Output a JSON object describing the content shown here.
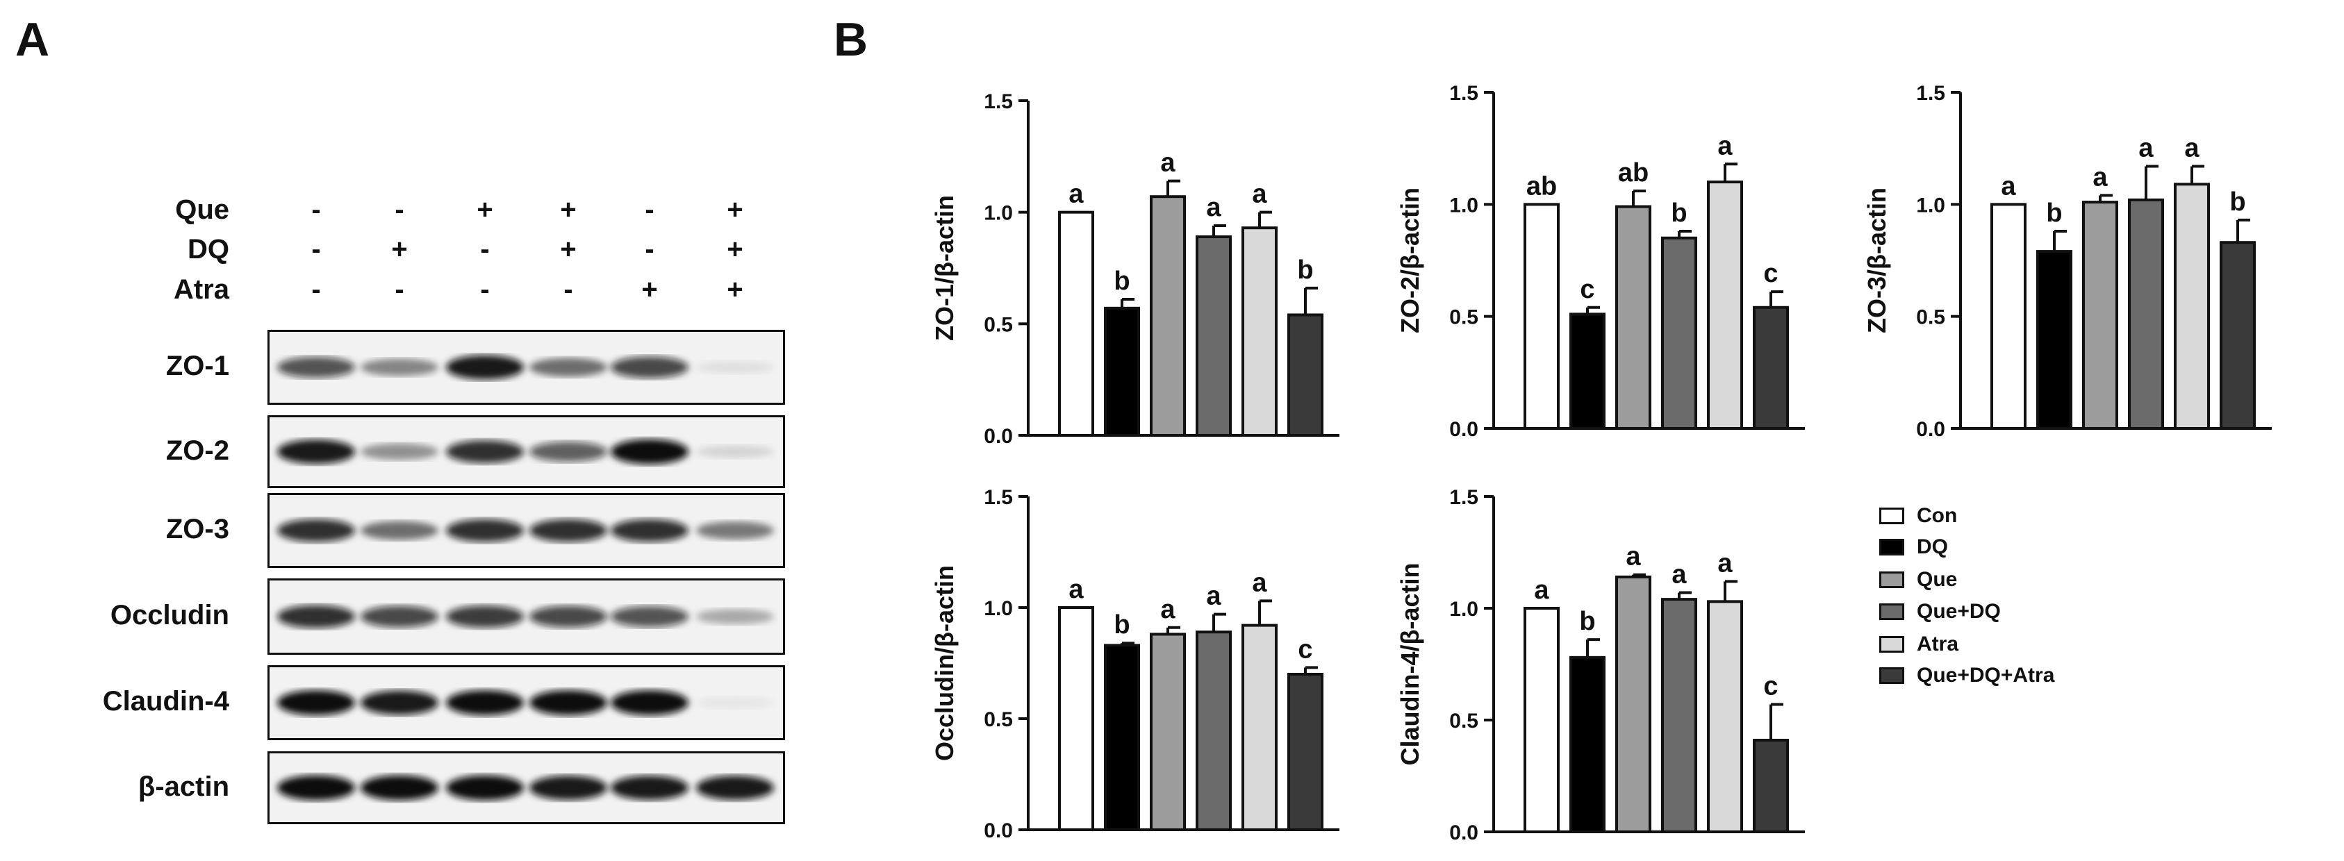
{
  "panels": {
    "a": "A",
    "b": "B"
  },
  "blot": {
    "treatments": [
      {
        "name": "Que",
        "signs": [
          "-",
          "-",
          "+",
          "+",
          "-",
          "+"
        ]
      },
      {
        "name": "DQ",
        "signs": [
          "-",
          "+",
          "-",
          "+",
          "-",
          "+"
        ]
      },
      {
        "name": "Atra",
        "signs": [
          "-",
          "-",
          "-",
          "-",
          "+",
          "+"
        ]
      }
    ],
    "proteins": [
      {
        "name": "ZO-1",
        "band_intensity": [
          0.7,
          0.45,
          0.95,
          0.55,
          0.75,
          0.08
        ]
      },
      {
        "name": "ZO-2",
        "band_intensity": [
          0.95,
          0.4,
          0.85,
          0.65,
          1.0,
          0.12
        ]
      },
      {
        "name": "ZO-3",
        "band_intensity": [
          0.85,
          0.55,
          0.85,
          0.85,
          0.85,
          0.5
        ]
      },
      {
        "name": "Occludin",
        "band_intensity": [
          0.85,
          0.75,
          0.8,
          0.75,
          0.7,
          0.3
        ]
      },
      {
        "name": "Claudin-4",
        "band_intensity": [
          1.0,
          0.95,
          1.0,
          1.0,
          1.0,
          0.04
        ]
      },
      {
        "name": "β-actin",
        "band_intensity": [
          1.0,
          1.0,
          1.0,
          0.95,
          0.95,
          0.95
        ]
      }
    ]
  },
  "chart_data": [
    {
      "type": "bar",
      "ylabel": "ZO-1/β-actin",
      "ylim": [
        0,
        1.5
      ],
      "yticks": [
        "0.0",
        "0.5",
        "1.0",
        "1.5"
      ],
      "categories": [
        "Con",
        "DQ",
        "Que",
        "Que+DQ",
        "Atra",
        "Que+DQ+Atra"
      ],
      "values": [
        1.0,
        0.57,
        1.07,
        0.89,
        0.93,
        0.54
      ],
      "errors": [
        0.0,
        0.04,
        0.07,
        0.05,
        0.07,
        0.12
      ],
      "letters": [
        "a",
        "b",
        "a",
        "a",
        "a",
        "b"
      ]
    },
    {
      "type": "bar",
      "ylabel": "ZO-2/β-actin",
      "ylim": [
        0,
        1.5
      ],
      "yticks": [
        "0.0",
        "0.5",
        "1.0",
        "1.5"
      ],
      "categories": [
        "Con",
        "DQ",
        "Que",
        "Que+DQ",
        "Atra",
        "Que+DQ+Atra"
      ],
      "values": [
        1.0,
        0.51,
        0.99,
        0.85,
        1.1,
        0.54
      ],
      "errors": [
        0.0,
        0.03,
        0.07,
        0.03,
        0.08,
        0.07
      ],
      "letters": [
        "ab",
        "c",
        "ab",
        "b",
        "a",
        "c"
      ]
    },
    {
      "type": "bar",
      "ylabel": "ZO-3/β-actin",
      "ylim": [
        0,
        1.5
      ],
      "yticks": [
        "0.0",
        "0.5",
        "1.0",
        "1.5"
      ],
      "categories": [
        "Con",
        "DQ",
        "Que",
        "Que+DQ",
        "Atra",
        "Que+DQ+Atra"
      ],
      "values": [
        1.0,
        0.79,
        1.01,
        1.02,
        1.09,
        0.83
      ],
      "errors": [
        0.0,
        0.09,
        0.03,
        0.15,
        0.08,
        0.1
      ],
      "letters": [
        "a",
        "b",
        "a",
        "a",
        "a",
        "b"
      ]
    },
    {
      "type": "bar",
      "ylabel": "Occludin/β-actin",
      "ylim": [
        0,
        1.5
      ],
      "yticks": [
        "0.0",
        "0.5",
        "1.0",
        "1.5"
      ],
      "categories": [
        "Con",
        "DQ",
        "Que",
        "Que+DQ",
        "Atra",
        "Que+DQ+Atra"
      ],
      "values": [
        1.0,
        0.83,
        0.88,
        0.89,
        0.92,
        0.7
      ],
      "errors": [
        0.0,
        0.01,
        0.03,
        0.08,
        0.11,
        0.03
      ],
      "letters": [
        "a",
        "b",
        "a",
        "a",
        "a",
        "c"
      ]
    },
    {
      "type": "bar",
      "ylabel": "Claudin-4/β-actin",
      "ylim": [
        0,
        1.5
      ],
      "yticks": [
        "0.0",
        "0.5",
        "1.0",
        "1.5"
      ],
      "categories": [
        "Con",
        "DQ",
        "Que",
        "Que+DQ",
        "Atra",
        "Que+DQ+Atra"
      ],
      "values": [
        1.0,
        0.78,
        1.14,
        1.04,
        1.03,
        0.41
      ],
      "errors": [
        0.0,
        0.08,
        0.01,
        0.03,
        0.09,
        0.16
      ],
      "letters": [
        "a",
        "b",
        "a",
        "a",
        "a",
        "c"
      ]
    }
  ],
  "legend": {
    "entries": [
      {
        "label": "Con",
        "color": "#ffffff"
      },
      {
        "label": "DQ",
        "color": "#000000"
      },
      {
        "label": "Que",
        "color": "#9c9c9c"
      },
      {
        "label": "Que+DQ",
        "color": "#6b6b6b"
      },
      {
        "label": "Atra",
        "color": "#d9d9d9"
      },
      {
        "label": "Que+DQ+Atra",
        "color": "#3a3a3a"
      }
    ]
  }
}
